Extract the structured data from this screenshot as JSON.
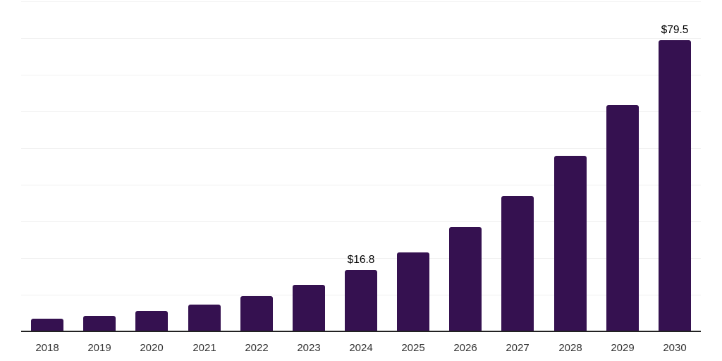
{
  "chart_data": {
    "type": "bar",
    "title": "",
    "xlabel": "",
    "ylabel": "",
    "categories": [
      "2018",
      "2019",
      "2020",
      "2021",
      "2022",
      "2023",
      "2024",
      "2025",
      "2026",
      "2027",
      "2028",
      "2029",
      "2030"
    ],
    "values": [
      3.4,
      4.3,
      5.6,
      7.3,
      9.7,
      12.7,
      16.8,
      21.6,
      28.5,
      36.9,
      47.9,
      61.7,
      79.5
    ],
    "annotations": [
      {
        "category": "2024",
        "text": "$16.8"
      },
      {
        "category": "2030",
        "text": "$79.5"
      }
    ],
    "ylim": [
      0,
      90
    ],
    "gridline_step": 10,
    "grid": "horizontal",
    "legend": "none",
    "y_axis_labels_visible": false,
    "colors": {
      "bar": "#351150",
      "axis": "#222222",
      "gridline": "#f0f0f0",
      "tick_label": "#333333",
      "annotation": "#000000",
      "background": "#ffffff"
    }
  }
}
